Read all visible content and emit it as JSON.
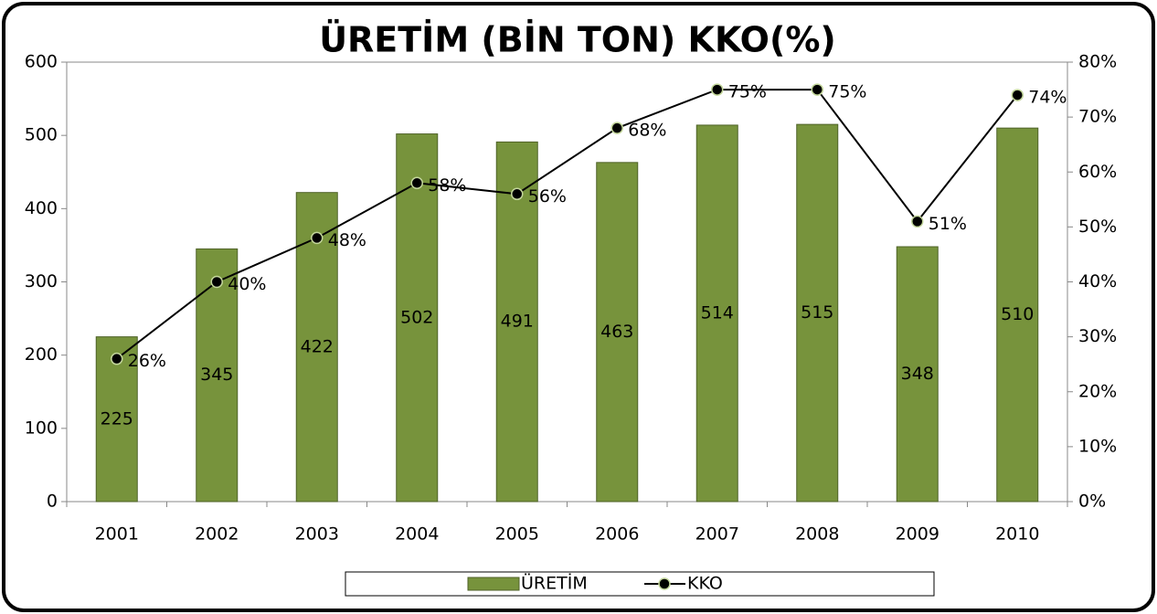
{
  "chart_data": {
    "type": "bar",
    "title": "ÜRETİM (BİN TON) KKO(%)",
    "categories": [
      "2001",
      "2002",
      "2003",
      "2004",
      "2005",
      "2006",
      "2007",
      "2008",
      "2009",
      "2010"
    ],
    "series": [
      {
        "name": "ÜRETİM",
        "color": "#77933c",
        "values": [
          225,
          345,
          422,
          502,
          491,
          463,
          514,
          515,
          348,
          510
        ]
      },
      {
        "name": "KKO",
        "type": "line",
        "axis": "y2",
        "color": "#000000",
        "marker_edge": "#c3d69b",
        "values": [
          26,
          40,
          48,
          58,
          56,
          68,
          75,
          75,
          51,
          74
        ],
        "value_labels": [
          "26%",
          "40%",
          "48%",
          "58%",
          "56%",
          "68%",
          "75%",
          "75%",
          "51%",
          "74%"
        ]
      }
    ],
    "ylim": [
      0,
      600
    ],
    "yticks": [
      0,
      100,
      200,
      300,
      400,
      500,
      600
    ],
    "y2lim": [
      0,
      80
    ],
    "y2ticks": [
      {
        "value": 0,
        "label": "0%"
      },
      {
        "value": 10,
        "label": "10%"
      },
      {
        "value": 20,
        "label": "20%"
      },
      {
        "value": 30,
        "label": "30%"
      },
      {
        "value": 40,
        "label": "40%"
      },
      {
        "value": 50,
        "label": "50%"
      },
      {
        "value": 60,
        "label": "60%"
      },
      {
        "value": 70,
        "label": "70%"
      },
      {
        "value": 80,
        "label": "80%"
      }
    ],
    "legend": "bottom"
  }
}
